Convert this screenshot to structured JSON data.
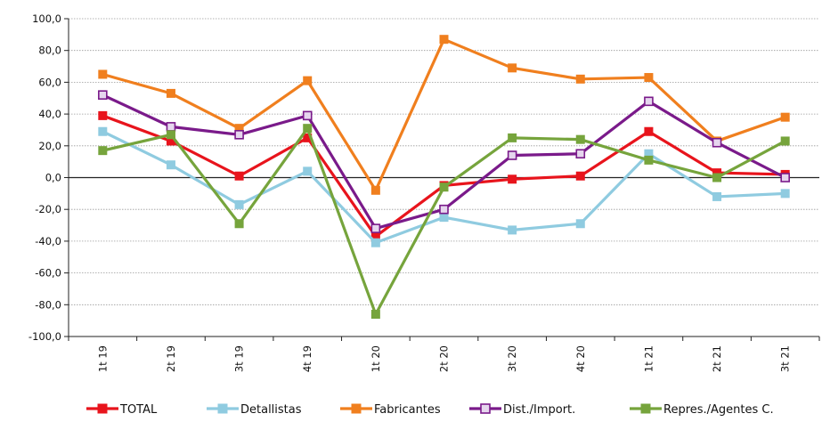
{
  "chart_data": {
    "type": "line",
    "title": "",
    "xlabel": "",
    "ylabel": "",
    "categories": [
      "1t 19",
      "2t 19",
      "3t 19",
      "4t 19",
      "1t 20",
      "2t 20",
      "3t 20",
      "4t 20",
      "1t 21",
      "2t 21",
      "3t 21"
    ],
    "ylim": [
      -100,
      100
    ],
    "yticks": [
      "100,0",
      "80,0",
      "60,0",
      "40,0",
      "20,0",
      "0,0",
      "-20,0",
      "-40,0",
      "-60,0",
      "-80,0",
      "-100,0"
    ],
    "grid": true,
    "legend_position": "bottom",
    "series": [
      {
        "name": "TOTAL",
        "color": "#e8141c",
        "marker": "square-filled",
        "values": [
          39,
          23,
          1,
          25,
          -37,
          -5,
          -1,
          1,
          29,
          3,
          2
        ]
      },
      {
        "name": "Detallistas",
        "color": "#8fcbe0",
        "marker": "square-filled",
        "values": [
          29,
          8,
          -17,
          4,
          -41,
          -25,
          -33,
          -29,
          15,
          -12,
          -10
        ]
      },
      {
        "name": "Fabricantes",
        "color": "#f07f1e",
        "marker": "square-filled",
        "values": [
          65,
          53,
          31,
          61,
          -8,
          87,
          69,
          62,
          63,
          23,
          38
        ]
      },
      {
        "name": "Dist./Import.",
        "color": "#7a1a8a",
        "marker": "square-open",
        "values": [
          52,
          32,
          27,
          39,
          -32,
          -20,
          14,
          15,
          48,
          22,
          0
        ]
      },
      {
        "name": "Repres./Agentes C.",
        "color": "#76a43c",
        "marker": "square-filled",
        "values": [
          17,
          27,
          -29,
          31,
          -86,
          -6,
          25,
          24,
          11,
          0,
          23
        ]
      }
    ]
  }
}
